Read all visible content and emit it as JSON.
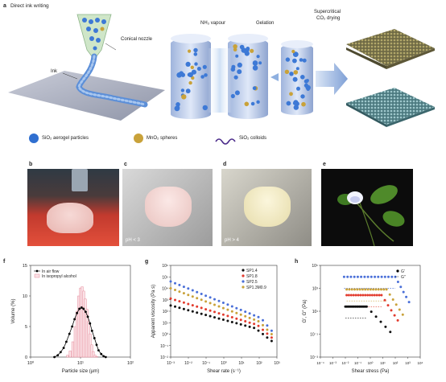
{
  "panel_a": {
    "label": "a",
    "title": "Direct ink writing",
    "nozzle_label": "Conical nozzle",
    "ink_label": "Ink",
    "step1": "NH₃ vapour",
    "step2": "Gelation",
    "step3_line1": "Supercritical",
    "step3_line2": "CO₂ drying",
    "legend": [
      {
        "name": "SiO₂ aerogel particles",
        "color": "#2f6fd0"
      },
      {
        "name": "MnO₂ spheres",
        "color": "#c9a23a"
      },
      {
        "name": "SiO₂ colloids",
        "color": "#4a2a8a"
      }
    ]
  },
  "panel_b": {
    "label": "b"
  },
  "panel_c": {
    "label": "c",
    "caption": "pH < 3"
  },
  "panel_d": {
    "label": "d",
    "caption": "pH > 4"
  },
  "panel_e": {
    "label": "e"
  },
  "chart_data": [
    {
      "panel": "f",
      "type": "bar",
      "xlabel": "Particle size (µm)",
      "ylabel": "Volume (%)",
      "xscale": "log",
      "xlim": [
        1,
        100
      ],
      "ylim": [
        0,
        15
      ],
      "yticks": [
        0,
        5,
        10,
        15
      ],
      "xticks": [
        "10⁰",
        "10¹",
        "10²"
      ],
      "legend": [
        "In air flow",
        "In isopropyl alcohol"
      ],
      "series": [
        {
          "name": "In air flow",
          "style": "line-markers",
          "color": "#000000",
          "x": [
            3,
            3.5,
            4,
            4.6,
            5.2,
            6,
            6.8,
            7.6,
            8.5,
            9.5,
            10.5,
            11.5,
            12.7,
            14,
            15.5,
            17,
            19,
            21,
            23,
            26,
            29,
            32
          ],
          "y": [
            0,
            0.3,
            0.8,
            1.5,
            2.5,
            3.8,
            5.0,
            6.2,
            7.2,
            7.9,
            8.1,
            7.9,
            7.4,
            6.6,
            5.5,
            4.3,
            3.1,
            2.0,
            1.1,
            0.5,
            0.15,
            0
          ]
        },
        {
          "name": "In isopropyl alcohol",
          "style": "bars",
          "color": "#e58a9a",
          "x": [
            5.5,
            6.2,
            7.0,
            7.8,
            8.5,
            9.2,
            10.0,
            10.8,
            11.6,
            12.5,
            13.5,
            14.5,
            15.6,
            16.8,
            18,
            19.5,
            21
          ],
          "y": [
            0.3,
            1.0,
            2.5,
            5.0,
            7.5,
            10.0,
            11.3,
            11.5,
            10.8,
            9.5,
            7.8,
            5.8,
            3.8,
            2.0,
            0.9,
            0.3,
            0.1
          ]
        }
      ]
    },
    {
      "panel": "g",
      "type": "scatter",
      "xlabel": "Shear rate (s⁻¹)",
      "ylabel": "Apparent viscosity (Pa s)",
      "xscale": "log",
      "yscale": "log",
      "xlim": [
        0.001,
        1000
      ],
      "ylim": [
        0.01,
        1000000
      ],
      "xticks": [
        "10⁻³",
        "10⁻²",
        "10⁻¹",
        "10⁰",
        "10¹",
        "10²",
        "10³"
      ],
      "yticks": [
        "10⁻²",
        "10⁻¹",
        "10⁰",
        "10¹",
        "10²",
        "10³",
        "10⁴",
        "10⁵",
        "10⁶"
      ],
      "legend": [
        "SP1.4",
        "SP1.8",
        "SP2.5",
        "SP1.3M0.9"
      ],
      "series": [
        {
          "name": "SP1.4",
          "color": "#111111",
          "x_log_start": -3,
          "x_log_end": 2.7,
          "y_log_start": 2.5,
          "y_log_end": -0.6,
          "knee": 1.8
        },
        {
          "name": "SP1.8",
          "color": "#e23b2e",
          "x_log_start": -3,
          "x_log_end": 2.7,
          "y_log_start": 3.1,
          "y_log_end": -0.3,
          "knee": 1.9
        },
        {
          "name": "SP2.5",
          "color": "#4a6fd8",
          "x_log_start": -3,
          "x_log_end": 2.7,
          "y_log_start": 4.6,
          "y_log_end": 0.3,
          "knee": 2.1
        },
        {
          "name": "SP1.3M0.9",
          "color": "#c9a23a",
          "x_log_start": -3,
          "x_log_end": 2.7,
          "y_log_start": 4.0,
          "y_log_end": 0.0,
          "knee": 2.0
        }
      ]
    },
    {
      "panel": "h",
      "type": "scatter",
      "xlabel": "Shear stress (Pa)",
      "ylabel": "G′, G″ (Pa)",
      "xscale": "log",
      "yscale": "log",
      "xlim": [
        0.0001,
        10000
      ],
      "ylim": [
        0.001,
        100000
      ],
      "xticks": [
        "10⁻⁴",
        "10⁻³",
        "10⁻²",
        "10⁻¹",
        "10⁰",
        "10¹",
        "10²",
        "10³",
        "10⁴"
      ],
      "yticks": [
        "10⁻³",
        "10⁻¹",
        "10¹",
        "10³",
        "10⁵"
      ],
      "legend": [
        "G′",
        "G″"
      ],
      "series": [
        {
          "name": "SP2.5",
          "color": "#4a6fd8",
          "plateau": 4.0,
          "x_start": -2.1,
          "x_yield": 2.0,
          "x_end": 3.1
        },
        {
          "name": "SP1.3M0.9",
          "color": "#c9a23a",
          "plateau": 2.9,
          "x_start": -1.9,
          "x_yield": 1.3,
          "x_end": 2.6
        },
        {
          "name": "SP1.8",
          "color": "#e23b2e",
          "plateau": 2.4,
          "x_start": -1.9,
          "x_yield": 0.9,
          "x_end": 2.2
        },
        {
          "name": "SP1.4",
          "color": "#111111",
          "plateau": 1.4,
          "x_start": -2.0,
          "x_yield": -0.3,
          "x_end": 1.6
        }
      ]
    }
  ]
}
